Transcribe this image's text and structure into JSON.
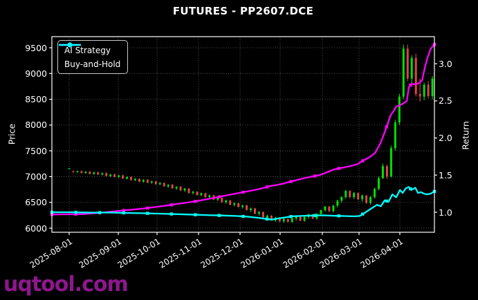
{
  "header": {
    "title": "FUTURES - PP2607.DCE"
  },
  "watermark": {
    "text": "uqtool.com",
    "color": "#8e168e"
  },
  "legend": {
    "position": "upper left",
    "items": [
      {
        "label": "AI Strategy",
        "color": "#ff00ff"
      },
      {
        "label": "Buy-and-Hold",
        "color": "#00ffff"
      }
    ]
  },
  "chart_data": {
    "type": "candlestick+line",
    "title": "FUTURES - PP2607.DCE",
    "grid": true,
    "background": "#000000",
    "price_axis": {
      "label": "Price",
      "ticks": [
        6000,
        6500,
        7000,
        7500,
        8000,
        8500,
        9000,
        9500
      ],
      "lim": [
        5920,
        9715
      ]
    },
    "return_axis": {
      "label": "Return",
      "ticks": [
        "1.0",
        "1.5",
        "2.0",
        "2.5",
        "3.0"
      ],
      "lim": [
        0.73,
        3.365
      ]
    },
    "x_axis": {
      "ticks": [
        {
          "label": "2025-08-01",
          "pos": 0.0452
        },
        {
          "label": "2025-09-01",
          "pos": 0.1736
        },
        {
          "label": "2025-10-01",
          "pos": 0.2749
        },
        {
          "label": "2025-11-01",
          "pos": 0.3834
        },
        {
          "label": "2025-12-01",
          "pos": 0.4919
        },
        {
          "label": "2026-01-01",
          "pos": 0.5967
        },
        {
          "label": "2026-02-01",
          "pos": 0.7071
        },
        {
          "label": "2026-03-01",
          "pos": 0.8029
        },
        {
          "label": "2026-04-01",
          "pos": 0.9096
        }
      ]
    },
    "candles": {
      "up_color": "#00e000",
      "down_color": "#dd4444",
      "start": 0.0452,
      "step": 0.01079,
      "ohlc": [
        [
          7150,
          7168,
          7140,
          7162
        ],
        [
          7100,
          7122,
          7072,
          7086
        ],
        [
          7086,
          7112,
          7076,
          7106
        ],
        [
          7106,
          7117,
          7062,
          7072
        ],
        [
          7072,
          7102,
          7056,
          7096
        ],
        [
          7096,
          7106,
          7042,
          7052
        ],
        [
          7052,
          7092,
          7036,
          7082
        ],
        [
          7082,
          7097,
          7032,
          7042
        ],
        [
          7042,
          7077,
          7022,
          7066
        ],
        [
          7066,
          7082,
          7002,
          7012
        ],
        [
          7012,
          7052,
          6992,
          7042
        ],
        [
          7042,
          7057,
          6982,
          6996
        ],
        [
          6996,
          7032,
          6972,
          7022
        ],
        [
          7022,
          7037,
          6952,
          6962
        ],
        [
          6962,
          7002,
          6942,
          6992
        ],
        [
          6992,
          7002,
          6922,
          6932
        ],
        [
          6932,
          6972,
          6912,
          6956
        ],
        [
          6956,
          6967,
          6892,
          6902
        ],
        [
          6902,
          6947,
          6882,
          6937
        ],
        [
          6937,
          6952,
          6872,
          6882
        ],
        [
          6882,
          6922,
          6862,
          6907
        ],
        [
          6907,
          6917,
          6842,
          6852
        ],
        [
          6852,
          6892,
          6832,
          6877
        ],
        [
          6877,
          6887,
          6802,
          6812
        ],
        [
          6812,
          6852,
          6782,
          6842
        ],
        [
          6842,
          6857,
          6762,
          6772
        ],
        [
          6772,
          6812,
          6742,
          6802
        ],
        [
          6802,
          6817,
          6722,
          6732
        ],
        [
          6732,
          6782,
          6702,
          6767
        ],
        [
          6767,
          6777,
          6672,
          6682
        ],
        [
          6682,
          6722,
          6652,
          6707
        ],
        [
          6707,
          6717,
          6632,
          6642
        ],
        [
          6642,
          6692,
          6617,
          6677
        ],
        [
          6677,
          6687,
          6592,
          6602
        ],
        [
          6602,
          6652,
          6572,
          6637
        ],
        [
          6637,
          6647,
          6542,
          6552
        ],
        [
          6552,
          6602,
          6522,
          6587
        ],
        [
          6587,
          6597,
          6492,
          6502
        ],
        [
          6502,
          6552,
          6472,
          6537
        ],
        [
          6537,
          6547,
          6442,
          6452
        ],
        [
          6452,
          6502,
          6422,
          6482
        ],
        [
          6482,
          6492,
          6402,
          6412
        ],
        [
          6412,
          6452,
          6382,
          6442
        ],
        [
          6442,
          6452,
          6342,
          6352
        ],
        [
          6352,
          6402,
          6312,
          6382
        ],
        [
          6382,
          6392,
          6272,
          6282
        ],
        [
          6282,
          6332,
          6242,
          6312
        ],
        [
          6312,
          6322,
          6202,
          6212
        ],
        [
          6212,
          6262,
          6172,
          6242
        ],
        [
          6242,
          6252,
          6142,
          6152
        ],
        [
          6152,
          6222,
          6122,
          6202
        ],
        [
          6202,
          6212,
          6112,
          6132
        ],
        [
          6132,
          6192,
          6102,
          6177
        ],
        [
          6177,
          6187,
          6107,
          6122
        ],
        [
          6122,
          6202,
          6100,
          6187
        ],
        [
          6187,
          6242,
          6152,
          6227
        ],
        [
          6227,
          6237,
          6132,
          6147
        ],
        [
          6147,
          6232,
          6122,
          6217
        ],
        [
          6217,
          6282,
          6182,
          6267
        ],
        [
          6267,
          6277,
          6172,
          6187
        ],
        [
          6187,
          6292,
          6162,
          6277
        ],
        [
          6277,
          6362,
          6252,
          6347
        ],
        [
          6347,
          6432,
          6322,
          6417
        ],
        [
          6417,
          6432,
          6312,
          6332
        ],
        [
          6332,
          6452,
          6302,
          6437
        ],
        [
          6437,
          6552,
          6402,
          6532
        ],
        [
          6532,
          6622,
          6492,
          6602
        ],
        [
          6602,
          6742,
          6572,
          6722
        ],
        [
          6722,
          6732,
          6582,
          6602
        ],
        [
          6602,
          6702,
          6562,
          6682
        ],
        [
          6682,
          6692,
          6542,
          6562
        ],
        [
          6562,
          6652,
          6512,
          6632
        ],
        [
          6632,
          6642,
          6472,
          6492
        ],
        [
          6492,
          6622,
          6452,
          6602
        ],
        [
          6602,
          6782,
          6572,
          6762
        ],
        [
          6762,
          7002,
          6732,
          6972
        ],
        [
          6972,
          7252,
          6952,
          7202
        ],
        [
          7202,
          7232,
          6952,
          7002
        ],
        [
          7002,
          7602,
          6982,
          7552
        ],
        [
          7552,
          8102,
          7502,
          8052
        ],
        [
          8052,
          8602,
          8002,
          8552
        ],
        [
          8552,
          9560,
          8502,
          9482
        ],
        [
          9482,
          9562,
          8852,
          8902
        ],
        [
          8902,
          9352,
          8802,
          9302
        ],
        [
          9302,
          9382,
          8552,
          8602
        ],
        [
          8602,
          8902,
          8452,
          8552
        ],
        [
          8552,
          8822,
          8482,
          8782
        ],
        [
          8782,
          8852,
          8522,
          8562
        ],
        [
          8562,
          8952,
          8502,
          8902
        ]
      ]
    },
    "series": [
      {
        "name": "AI Strategy",
        "axis": "return",
        "color": "#ff00ff",
        "points": [
          [
            0,
            0.97
          ],
          [
            0.04,
            0.972
          ],
          [
            0.08,
            0.975
          ],
          [
            0.11,
            0.985
          ],
          [
            0.14,
            1.0
          ],
          [
            0.17,
            1.015
          ],
          [
            0.2,
            1.03
          ],
          [
            0.24,
            1.05
          ],
          [
            0.27,
            1.07
          ],
          [
            0.3,
            1.09
          ],
          [
            0.34,
            1.12
          ],
          [
            0.38,
            1.15
          ],
          [
            0.42,
            1.19
          ],
          [
            0.46,
            1.23
          ],
          [
            0.5,
            1.27
          ],
          [
            0.54,
            1.31
          ],
          [
            0.57,
            1.35
          ],
          [
            0.6,
            1.38
          ],
          [
            0.63,
            1.42
          ],
          [
            0.66,
            1.46
          ],
          [
            0.7,
            1.5
          ],
          [
            0.72,
            1.54
          ],
          [
            0.74,
            1.58
          ],
          [
            0.76,
            1.6
          ],
          [
            0.78,
            1.62
          ],
          [
            0.8,
            1.65
          ],
          [
            0.815,
            1.7
          ],
          [
            0.83,
            1.74
          ],
          [
            0.845,
            1.8
          ],
          [
            0.858,
            1.92
          ],
          [
            0.868,
            2.05
          ],
          [
            0.877,
            2.18
          ],
          [
            0.885,
            2.3
          ],
          [
            0.893,
            2.36
          ],
          [
            0.9,
            2.42
          ],
          [
            0.91,
            2.44
          ],
          [
            0.92,
            2.47
          ],
          [
            0.928,
            2.5
          ],
          [
            0.933,
            2.68
          ],
          [
            0.94,
            2.73
          ],
          [
            0.95,
            2.72
          ],
          [
            0.96,
            2.74
          ],
          [
            0.968,
            2.78
          ],
          [
            0.975,
            2.95
          ],
          [
            0.982,
            3.08
          ],
          [
            0.99,
            3.2
          ],
          [
            1.0,
            3.26
          ]
        ]
      },
      {
        "name": "Buy-and-Hold",
        "axis": "return",
        "color": "#00ffff",
        "points": [
          [
            0,
            1.0
          ],
          [
            0.05,
            1.0
          ],
          [
            0.1,
            0.995
          ],
          [
            0.15,
            0.995
          ],
          [
            0.2,
            0.99
          ],
          [
            0.25,
            0.985
          ],
          [
            0.3,
            0.978
          ],
          [
            0.35,
            0.97
          ],
          [
            0.4,
            0.962
          ],
          [
            0.45,
            0.955
          ],
          [
            0.48,
            0.95
          ],
          [
            0.51,
            0.94
          ],
          [
            0.54,
            0.925
          ],
          [
            0.56,
            0.91
          ],
          [
            0.575,
            0.9
          ],
          [
            0.59,
            0.915
          ],
          [
            0.61,
            0.93
          ],
          [
            0.63,
            0.945
          ],
          [
            0.65,
            0.95
          ],
          [
            0.68,
            0.955
          ],
          [
            0.71,
            0.958
          ],
          [
            0.74,
            0.952
          ],
          [
            0.77,
            0.948
          ],
          [
            0.79,
            0.944
          ],
          [
            0.805,
            0.95
          ],
          [
            0.82,
            1.0
          ],
          [
            0.835,
            1.05
          ],
          [
            0.85,
            1.1
          ],
          [
            0.86,
            1.08
          ],
          [
            0.87,
            1.16
          ],
          [
            0.88,
            1.14
          ],
          [
            0.89,
            1.24
          ],
          [
            0.9,
            1.2
          ],
          [
            0.91,
            1.3
          ],
          [
            0.917,
            1.26
          ],
          [
            0.925,
            1.32
          ],
          [
            0.933,
            1.34
          ],
          [
            0.94,
            1.3
          ],
          [
            0.95,
            1.33
          ],
          [
            0.957,
            1.26
          ],
          [
            0.965,
            1.27
          ],
          [
            0.973,
            1.25
          ],
          [
            0.98,
            1.24
          ],
          [
            0.99,
            1.25
          ],
          [
            1.0,
            1.28
          ]
        ]
      }
    ]
  }
}
